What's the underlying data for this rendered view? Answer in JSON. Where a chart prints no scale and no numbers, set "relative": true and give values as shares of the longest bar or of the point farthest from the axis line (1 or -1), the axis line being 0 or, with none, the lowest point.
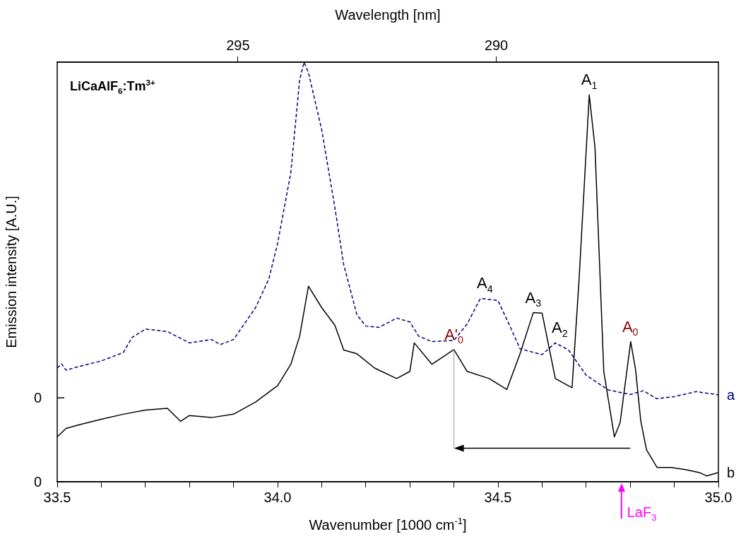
{
  "chart_data": {
    "type": "line",
    "relative": true,
    "xlabel": "Wavenumber [1000 cm$^{-1}$]",
    "ylabel": "Emission intensity [A.U.]",
    "x2label": "Wavelength [nm]",
    "xlim": [
      33.5,
      35.0
    ],
    "xticks": [
      {
        "value": 33.5,
        "label": "33.5"
      },
      {
        "value": 33.6,
        "label": null
      },
      {
        "value": 33.7,
        "label": null
      },
      {
        "value": 33.8,
        "label": null
      },
      {
        "value": 33.9,
        "label": null
      },
      {
        "value": 34.0,
        "label": "34.0"
      },
      {
        "value": 34.1,
        "label": null
      },
      {
        "value": 34.2,
        "label": null
      },
      {
        "value": 34.3,
        "label": null
      },
      {
        "value": 34.4,
        "label": null
      },
      {
        "value": 34.5,
        "label": "34.5"
      },
      {
        "value": 34.6,
        "label": null
      },
      {
        "value": 34.7,
        "label": null
      },
      {
        "value": 34.8,
        "label": null
      },
      {
        "value": 34.9,
        "label": null
      },
      {
        "value": 35.0,
        "label": "35.0"
      }
    ],
    "x2lim": [
      298.5,
      285.7
    ],
    "x2ticks": [
      295,
      290
    ],
    "grid": false,
    "legend": false,
    "marker": "none",
    "series": [
      {
        "name": "a",
        "color": "#000080",
        "line_style": "dashed",
        "x": [
          33.5,
          33.51,
          33.52,
          33.55,
          33.6,
          33.65,
          33.67,
          33.7,
          33.75,
          33.8,
          33.85,
          33.87,
          33.9,
          33.95,
          33.98,
          34.0,
          34.03,
          34.05,
          34.06,
          34.07,
          34.1,
          34.13,
          34.15,
          34.18,
          34.2,
          34.23,
          34.27,
          34.3,
          34.32,
          34.35,
          34.4,
          34.43,
          34.46,
          34.5,
          34.53,
          34.55,
          34.6,
          34.63,
          34.66,
          34.7,
          34.75,
          34.8,
          34.83,
          34.86,
          34.9,
          34.95,
          35.0
        ],
        "values": [
          0.271,
          0.281,
          0.266,
          0.275,
          0.288,
          0.308,
          0.344,
          0.364,
          0.358,
          0.331,
          0.339,
          0.327,
          0.339,
          0.415,
          0.483,
          0.568,
          0.737,
          0.958,
          1.0,
          0.975,
          0.839,
          0.653,
          0.517,
          0.398,
          0.371,
          0.368,
          0.39,
          0.381,
          0.347,
          0.334,
          0.337,
          0.376,
          0.437,
          0.432,
          0.364,
          0.317,
          0.303,
          0.331,
          0.314,
          0.254,
          0.219,
          0.208,
          0.217,
          0.198,
          0.203,
          0.215,
          0.207
        ]
      },
      {
        "name": "b",
        "color": "#000000",
        "line_style": "solid",
        "x": [
          33.5,
          33.52,
          33.55,
          33.6,
          33.65,
          33.7,
          33.75,
          33.78,
          33.8,
          33.85,
          33.9,
          33.95,
          34.0,
          34.03,
          34.05,
          34.07,
          34.1,
          34.13,
          34.15,
          34.18,
          34.22,
          34.27,
          34.3,
          34.31,
          34.35,
          34.4,
          34.43,
          34.48,
          34.52,
          34.55,
          34.58,
          34.6,
          34.63,
          34.668,
          34.684,
          34.707,
          34.72,
          34.74,
          34.764,
          34.777,
          34.801,
          34.812,
          34.824,
          34.837,
          34.861,
          34.893,
          34.925,
          34.957,
          34.973,
          35.0
        ],
        "values": [
          0.107,
          0.127,
          0.136,
          0.149,
          0.161,
          0.171,
          0.175,
          0.144,
          0.158,
          0.153,
          0.161,
          0.19,
          0.229,
          0.28,
          0.347,
          0.466,
          0.415,
          0.373,
          0.314,
          0.305,
          0.271,
          0.246,
          0.263,
          0.331,
          0.28,
          0.315,
          0.263,
          0.246,
          0.22,
          0.305,
          0.403,
          0.402,
          0.246,
          0.224,
          0.483,
          0.922,
          0.797,
          0.263,
          0.107,
          0.141,
          0.334,
          0.268,
          0.144,
          0.076,
          0.034,
          0.034,
          0.029,
          0.022,
          0.014,
          0.022
        ]
      }
    ],
    "annotations": [
      "LiCaAlF$_{6}$:Tm$^{3+}$",
      "0",
      "0",
      {
        "text": "A$_{1}$",
        "x": 34.707,
        "y": 0.922
      },
      {
        "text": "A$_{4}$",
        "x": 34.47,
        "y": 0.437
      },
      {
        "text": "A$_{3}$",
        "x": 34.58,
        "y": 0.403
      },
      {
        "text": "A$_{2}$",
        "x": 34.64,
        "y": 0.331
      },
      {
        "text": "A'$_{0}$",
        "x": 34.4,
        "y": 0.315
      },
      {
        "text": "A$_{0}$",
        "x": 34.8,
        "y": 0.334
      }
    ],
    "ref_lines": [
      {
        "axis": "x",
        "value": 34.78,
        "label": "LaF$_{3}$",
        "color": "#ff00ff"
      }
    ]
  }
}
